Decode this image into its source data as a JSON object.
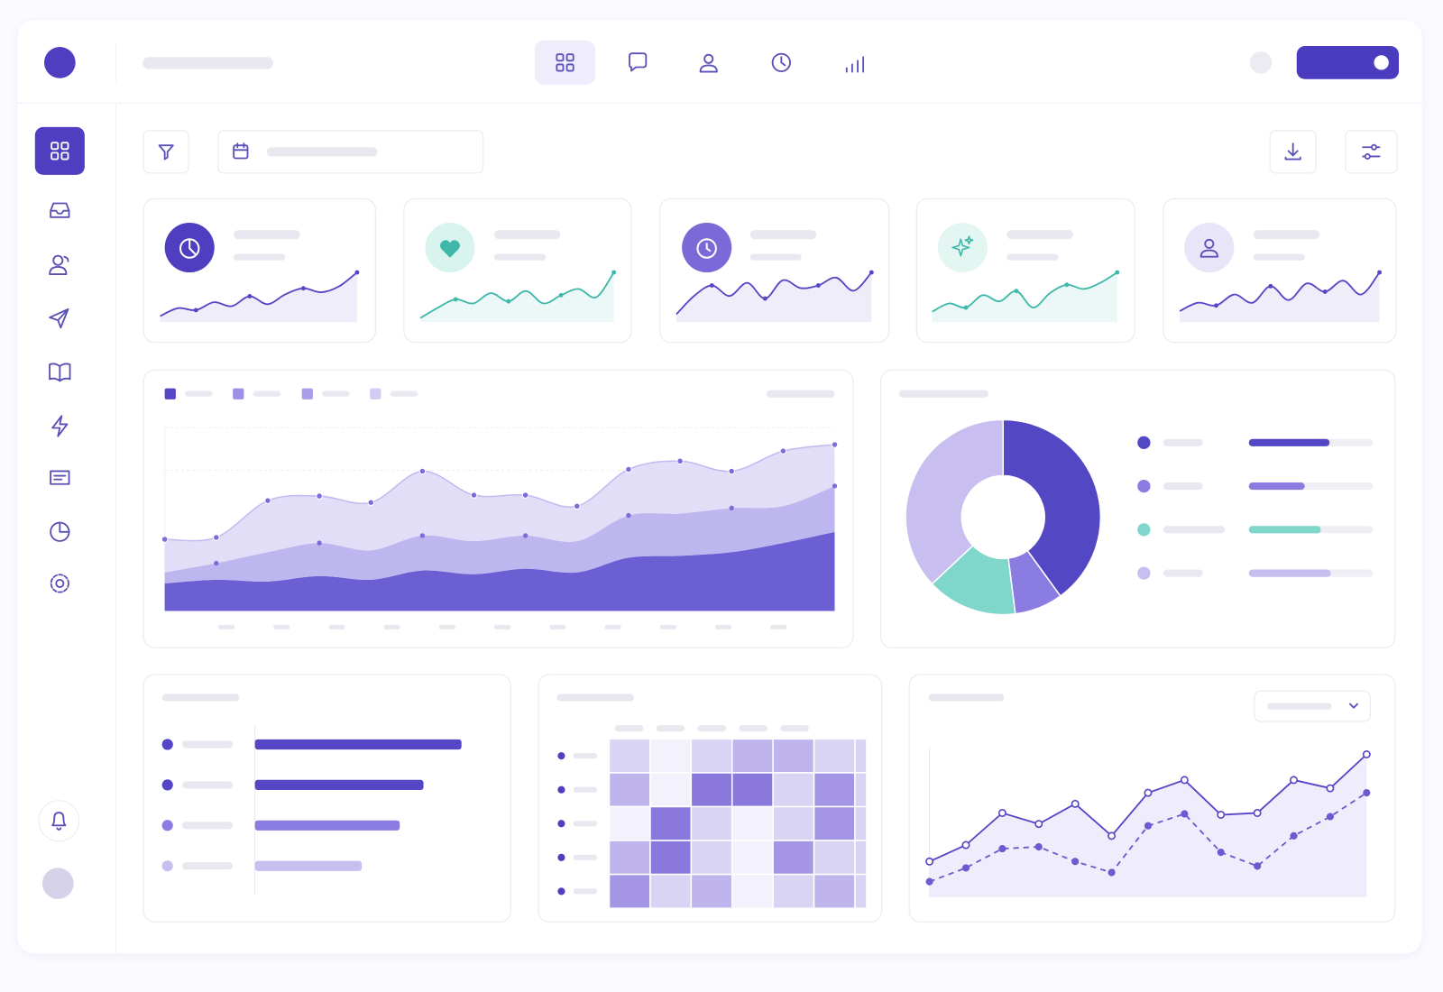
{
  "chart_data": [
    {
      "type": "sparkline",
      "color": "#5546c6",
      "values": [
        6,
        14,
        12,
        20,
        16,
        26,
        18,
        28,
        34,
        30,
        36,
        50
      ]
    },
    {
      "type": "sparkline",
      "color": "#3fb8aa",
      "values": [
        4,
        14,
        22,
        18,
        28,
        20,
        30,
        18,
        26,
        32,
        24,
        48
      ]
    },
    {
      "type": "sparkline",
      "color": "#5546c6",
      "values": [
        6,
        20,
        28,
        20,
        30,
        18,
        32,
        26,
        28,
        34,
        24,
        38
      ]
    },
    {
      "type": "sparkline",
      "color": "#3fb8aa",
      "values": [
        10,
        18,
        14,
        26,
        20,
        30,
        14,
        28,
        36,
        32,
        38,
        48
      ]
    },
    {
      "type": "sparkline",
      "color": "#5546c6",
      "values": [
        8,
        14,
        12,
        20,
        14,
        26,
        16,
        28,
        22,
        30,
        20,
        36
      ]
    },
    {
      "type": "area",
      "stacked": true,
      "series": [
        {
          "color": "#6c5fd3",
          "values": [
            30,
            34,
            32,
            38,
            34,
            44,
            40,
            46,
            42,
            58,
            60,
            64,
            74,
            86
          ]
        },
        {
          "color": "#b3a9ec",
          "values": [
            12,
            18,
            32,
            36,
            32,
            38,
            36,
            36,
            34,
            46,
            46,
            48,
            40,
            50
          ]
        },
        {
          "color": "#ddd8f7",
          "values": [
            36,
            28,
            56,
            51,
            52,
            70,
            50,
            44,
            38,
            50,
            57,
            40,
            60,
            45
          ]
        }
      ]
    },
    {
      "type": "pie",
      "values": [
        40,
        8,
        15,
        37
      ],
      "colors": [
        "#5447c4",
        "#8a7ce0",
        "#7fd6cb",
        "#c8bff0"
      ],
      "progress": [
        65,
        45,
        58,
        66
      ]
    },
    {
      "type": "bar",
      "orientation": "horizontal",
      "values": [
        87,
        71,
        61,
        45
      ],
      "colors": [
        "#5546c6",
        "#5546c6",
        "#8a7ce0",
        "#c8bff0"
      ]
    },
    {
      "type": "heatmap",
      "values": [
        [
          1,
          0,
          1,
          2,
          2,
          1,
          1
        ],
        [
          2,
          0,
          4,
          4,
          1,
          3,
          1
        ],
        [
          0,
          4,
          1,
          0,
          1,
          3,
          1
        ],
        [
          2,
          4,
          1,
          0,
          3,
          1,
          1
        ],
        [
          3,
          1,
          2,
          0,
          1,
          2,
          1
        ]
      ]
    },
    {
      "type": "line",
      "series": [
        {
          "color": "#5546c6",
          "dashed": false,
          "values": [
            39,
            57,
            92,
            80,
            102,
            67,
            114,
            128,
            90,
            92,
            128,
            119,
            156
          ]
        },
        {
          "color": "#6a5cd0",
          "dashed": true,
          "values": [
            17,
            32,
            53,
            55,
            39,
            27,
            78,
            91,
            49,
            34,
            67,
            88,
            114
          ]
        }
      ]
    }
  ]
}
